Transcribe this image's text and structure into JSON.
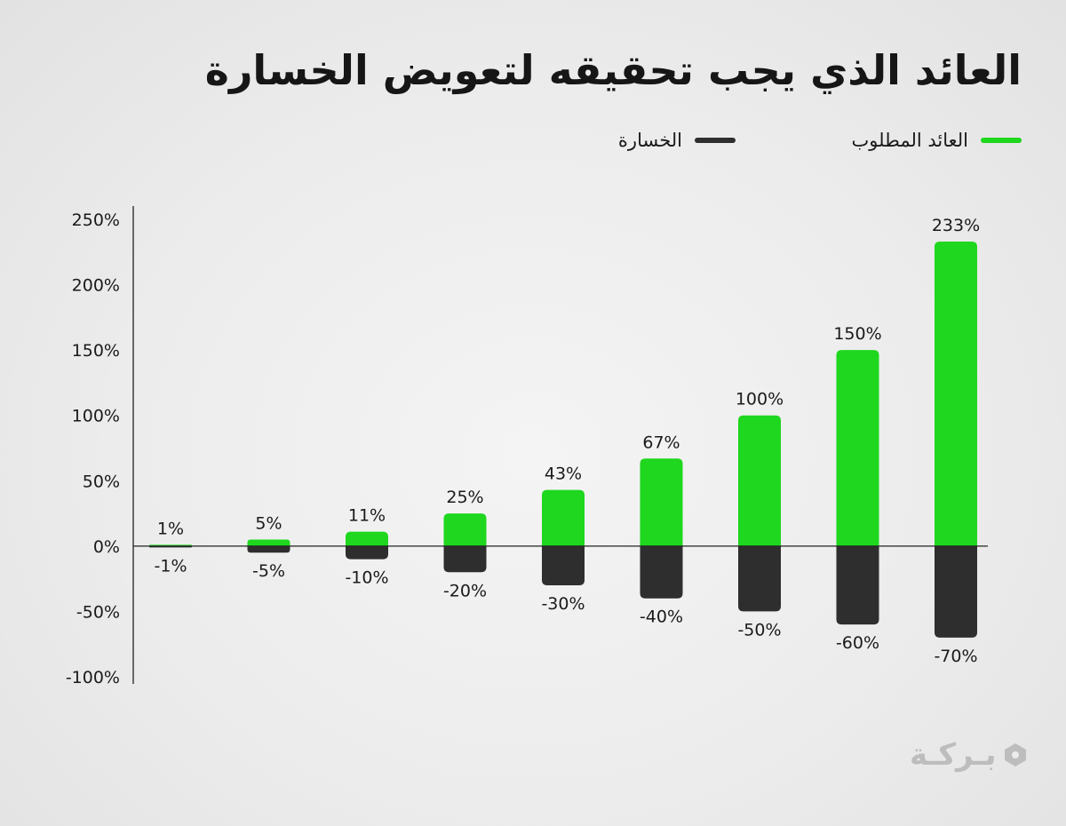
{
  "title": "العائد الذي يجب تحقيقه لتعويض الخسارة",
  "legend": {
    "required_label": "العائد المطلوب",
    "loss_label": "الخسارة"
  },
  "logo": {
    "text": "بـركـة"
  },
  "colors": {
    "required": "#1ed71e",
    "loss": "#2e2e2e",
    "axis": "#222222"
  },
  "chart_data": {
    "type": "bar",
    "ylim": [
      -100,
      250
    ],
    "yticks": [
      "250%",
      "200%",
      "150%",
      "100%",
      "50%",
      "0%",
      "-50%",
      "-100%"
    ],
    "ytick_values": [
      250,
      200,
      150,
      100,
      50,
      0,
      -50,
      -100
    ],
    "series": [
      {
        "name": "العائد المطلوب",
        "values": [
          1,
          5,
          11,
          25,
          43,
          67,
          100,
          150,
          233
        ],
        "labels": [
          "1%",
          "5%",
          "11%",
          "25%",
          "43%",
          "67%",
          "100%",
          "150%",
          "233%"
        ]
      },
      {
        "name": "الخسارة",
        "values": [
          -1,
          -5,
          -10,
          -20,
          -30,
          -40,
          -50,
          -60,
          -70
        ],
        "labels": [
          "-1%",
          "-5%",
          "-10%",
          "-20%",
          "-30%",
          "-40%",
          "-50%",
          "-60%",
          "-70%"
        ]
      }
    ],
    "legend_position": "top-right",
    "grid": false
  }
}
